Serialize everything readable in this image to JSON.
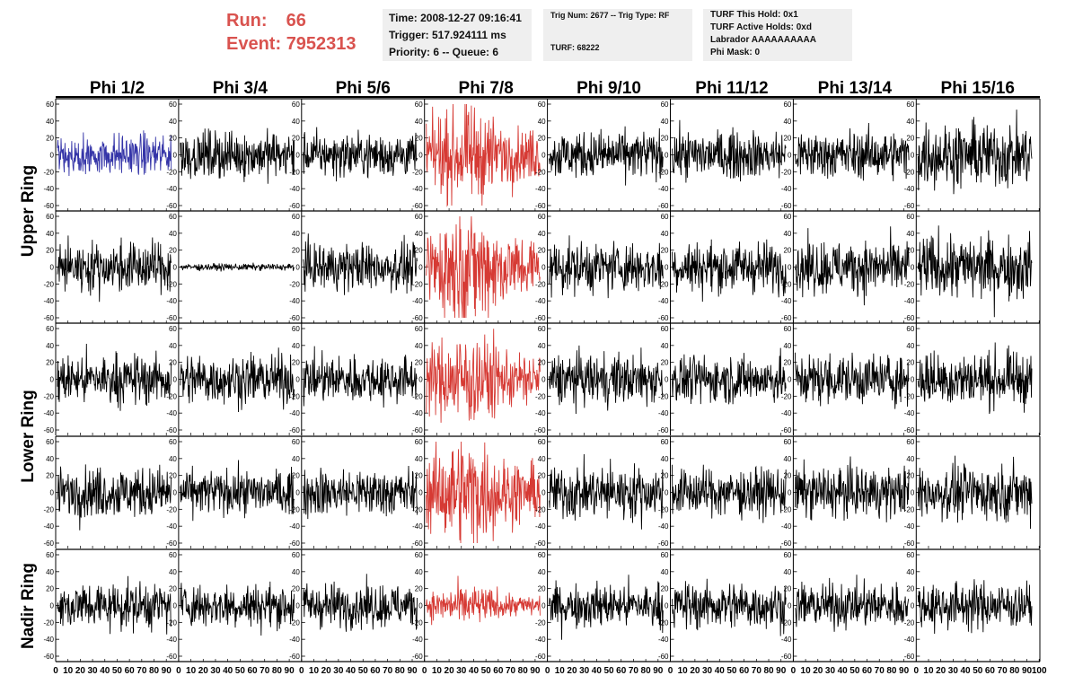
{
  "header": {
    "run_label": "Run:",
    "run_value": "66",
    "event_label": "Event:",
    "event_value": "7952313",
    "time": "Time: 2008-12-27 09:16:41",
    "trigger": "Trigger: 517.924111 ms",
    "priority": "Priority: 6 -- Queue: 6",
    "trig_num": "Trig Num: 2677 -- Trig Type: RF",
    "turf": "TURF: 68222",
    "turf_hold": "TURF This Hold: 0x1",
    "turf_active": "TURF Active Holds: 0xd",
    "labrador": "Labrador AAAAAAAAAA",
    "phi_mask": "Phi Mask: 0"
  },
  "chart_data": {
    "type": "line",
    "columns": [
      "Phi 1/2",
      "Phi 3/4",
      "Phi 5/6",
      "Phi 7/8",
      "Phi 9/10",
      "Phi 11/12",
      "Phi 13/14",
      "Phi 15/16"
    ],
    "ring_labels": [
      "Upper Ring",
      "Lower Ring",
      "Nadir Ring"
    ],
    "rows": 5,
    "ylim": [
      -60,
      60
    ],
    "y_ticks": [
      "60",
      "40",
      "20",
      "0",
      "-20",
      "-40",
      "-60"
    ],
    "xlim": [
      0,
      100
    ],
    "x_ticks": [
      "0",
      "10",
      "20",
      "30",
      "40",
      "50",
      "60",
      "70",
      "80",
      "90",
      "100"
    ],
    "samples_per_trace": 256,
    "trace_x_end": 94,
    "amplitudes": [
      [
        12,
        14,
        13,
        24,
        14,
        14,
        14,
        19
      ],
      [
        15,
        2,
        14,
        30,
        15,
        15,
        16,
        19
      ],
      [
        15,
        15,
        14,
        24,
        15,
        14,
        15,
        16
      ],
      [
        15,
        13,
        14,
        28,
        16,
        14,
        15,
        16
      ],
      [
        14,
        13,
        13,
        10,
        13,
        14,
        13,
        14
      ]
    ],
    "colors": {
      "default": "#000000",
      "highlight_trace": "#3535a8",
      "triggered_phi": "#d63a34"
    },
    "highlight_cell": [
      0,
      0
    ],
    "triggered_column": 3
  }
}
